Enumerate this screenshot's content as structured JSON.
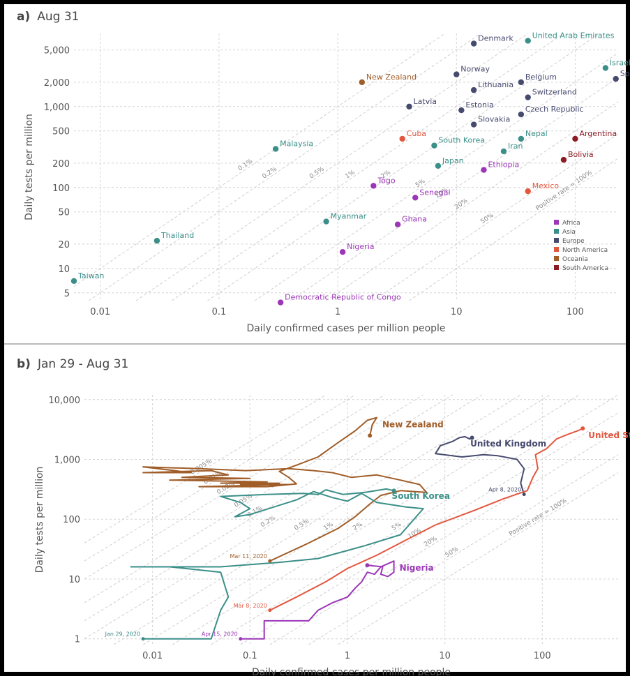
{
  "chart_data": [
    {
      "type": "scatter",
      "panel_letter": "a)",
      "title": "Aug 31",
      "xlabel": "Daily confirmed cases per million people",
      "ylabel": "Daily tests per million",
      "x_scale": "log",
      "y_scale": "log",
      "xlim": [
        0.006,
        230
      ],
      "ylim": [
        4,
        8000
      ],
      "x_ticks": [
        {
          "v": 0.01,
          "label": "0.01"
        },
        {
          "v": 0.1,
          "label": "0.1"
        },
        {
          "v": 1,
          "label": "1"
        },
        {
          "v": 10,
          "label": "10"
        },
        {
          "v": 100,
          "label": "100"
        }
      ],
      "y_ticks": [
        {
          "v": 5,
          "label": "5"
        },
        {
          "v": 10,
          "label": "10"
        },
        {
          "v": 20,
          "label": "20"
        },
        {
          "v": 50,
          "label": "50"
        },
        {
          "v": 100,
          "label": "100"
        },
        {
          "v": 200,
          "label": "200"
        },
        {
          "v": 500,
          "label": "500"
        },
        {
          "v": 1000,
          "label": "1,000"
        },
        {
          "v": 2000,
          "label": "2,000"
        },
        {
          "v": 5000,
          "label": "5,000"
        }
      ],
      "positive_rate_lines": [
        {
          "rate": 0.001,
          "label": "0.1%"
        },
        {
          "rate": 0.002,
          "label": "0.2%"
        },
        {
          "rate": 0.005,
          "label": "0.5%"
        },
        {
          "rate": 0.01,
          "label": "1%"
        },
        {
          "rate": 0.02,
          "label": "2%"
        },
        {
          "rate": 0.05,
          "label": "5%"
        },
        {
          "rate": 0.1,
          "label": "10%"
        },
        {
          "rate": 0.2,
          "label": "20%"
        },
        {
          "rate": 0.5,
          "label": "50%"
        },
        {
          "rate": 1,
          "label": "Positive rate = 100%"
        }
      ],
      "legend_position": "bottom-right",
      "legend": [
        {
          "region": "Africa",
          "color": "#9b36b7"
        },
        {
          "region": "Asia",
          "color": "#3a8f88"
        },
        {
          "region": "Europe",
          "color": "#464a6e"
        },
        {
          "region": "North America",
          "color": "#e3573f"
        },
        {
          "region": "Oceania",
          "color": "#a05d28"
        },
        {
          "region": "South America",
          "color": "#8c1c24"
        }
      ],
      "labeled_points": [
        {
          "country": "Taiwan",
          "region": "Asia",
          "x": 0.006,
          "y": 7
        },
        {
          "country": "Thailand",
          "region": "Asia",
          "x": 0.03,
          "y": 22
        },
        {
          "country": "Malaysia",
          "region": "Asia",
          "x": 0.3,
          "y": 300
        },
        {
          "country": "Democratic Republic of Congo",
          "region": "Africa",
          "x": 0.33,
          "y": 3.8
        },
        {
          "country": "Myanmar",
          "region": "Asia",
          "x": 0.8,
          "y": 38
        },
        {
          "country": "Nigeria",
          "region": "Africa",
          "x": 1.1,
          "y": 16
        },
        {
          "country": "New Zealand",
          "region": "Oceania",
          "x": 1.6,
          "y": 2000
        },
        {
          "country": "Togo",
          "region": "Africa",
          "x": 2.0,
          "y": 105
        },
        {
          "country": "Ghana",
          "region": "Africa",
          "x": 3.2,
          "y": 35
        },
        {
          "country": "Cuba",
          "region": "North America",
          "x": 3.5,
          "y": 400
        },
        {
          "country": "Latvia",
          "region": "Europe",
          "x": 4.0,
          "y": 1000
        },
        {
          "country": "Senegal",
          "region": "Africa",
          "x": 4.5,
          "y": 75
        },
        {
          "country": "South Korea",
          "region": "Asia",
          "x": 6.5,
          "y": 330
        },
        {
          "country": "Japan",
          "region": "Asia",
          "x": 7.0,
          "y": 185
        },
        {
          "country": "Norway",
          "region": "Europe",
          "x": 10.0,
          "y": 2500
        },
        {
          "country": "Estonia",
          "region": "Europe",
          "x": 11.0,
          "y": 900
        },
        {
          "country": "Lithuania",
          "region": "Europe",
          "x": 14.0,
          "y": 1600
        },
        {
          "country": "Slovakia",
          "region": "Europe",
          "x": 14.0,
          "y": 600
        },
        {
          "country": "Denmark",
          "region": "Europe",
          "x": 14.0,
          "y": 6000
        },
        {
          "country": "Ethiopia",
          "region": "Africa",
          "x": 17.0,
          "y": 165
        },
        {
          "country": "Iran",
          "region": "Asia",
          "x": 25.0,
          "y": 280
        },
        {
          "country": "Nepal",
          "region": "Asia",
          "x": 35.0,
          "y": 400
        },
        {
          "country": "Mexico",
          "region": "North America",
          "x": 40.0,
          "y": 90
        },
        {
          "country": "Belgium",
          "region": "Europe",
          "x": 35.0,
          "y": 2000
        },
        {
          "country": "Switzerland",
          "region": "Europe",
          "x": 40.0,
          "y": 1300
        },
        {
          "country": "Czech Republic",
          "region": "Europe",
          "x": 35.0,
          "y": 800
        },
        {
          "country": "United Arab Emirates",
          "region": "Asia",
          "x": 40.0,
          "y": 6500
        },
        {
          "country": "Argentina",
          "region": "South America",
          "x": 100.0,
          "y": 400
        },
        {
          "country": "Bolivia",
          "region": "South America",
          "x": 80.0,
          "y": 220
        },
        {
          "country": "Spain",
          "region": "Europe",
          "x": 220.0,
          "y": 2200
        },
        {
          "country": "Israel",
          "region": "Asia",
          "x": 180.0,
          "y": 3000
        }
      ]
    },
    {
      "type": "line",
      "panel_letter": "b)",
      "title": "Jan 29 - Aug 31",
      "xlabel": "Daily confirmed cases per million people",
      "ylabel": "Daily tests per million",
      "x_scale": "log",
      "y_scale": "log",
      "xlim": [
        0.002,
        600
      ],
      "ylim": [
        0.8,
        12000
      ],
      "x_ticks": [
        {
          "v": 0.01,
          "label": "0.01"
        },
        {
          "v": 0.1,
          "label": "0.1"
        },
        {
          "v": 1,
          "label": "1"
        },
        {
          "v": 10,
          "label": "10"
        },
        {
          "v": 100,
          "label": "100"
        }
      ],
      "y_ticks": [
        {
          "v": 1,
          "label": "1"
        },
        {
          "v": 10,
          "label": "10"
        },
        {
          "v": 100,
          "label": "100"
        },
        {
          "v": 1000,
          "label": "1,000"
        },
        {
          "v": 10000,
          "label": "10,000"
        }
      ],
      "positive_rate_lines": [
        {
          "rate": 5e-05,
          "label": "0.005%"
        },
        {
          "rate": 0.0001,
          "label": "0.01%"
        },
        {
          "rate": 0.0002,
          "label": "0.02%"
        },
        {
          "rate": 0.0005,
          "label": "0.05%"
        },
        {
          "rate": 0.001,
          "label": "0.1%"
        },
        {
          "rate": 0.002,
          "label": "0.2%"
        },
        {
          "rate": 0.005,
          "label": "0.5%"
        },
        {
          "rate": 0.01,
          "label": "1%"
        },
        {
          "rate": 0.02,
          "label": "2%"
        },
        {
          "rate": 0.05,
          "label": "5%"
        },
        {
          "rate": 0.1,
          "label": "10%"
        },
        {
          "rate": 0.2,
          "label": "20%"
        },
        {
          "rate": 0.5,
          "label": "50%"
        },
        {
          "rate": 1,
          "label": "Positive rate = 100%"
        }
      ],
      "series": [
        {
          "name": "New Zealand",
          "color": "#a05d28",
          "points": [
            [
              0.16,
              20
            ],
            [
              0.4,
              40
            ],
            [
              0.8,
              70
            ],
            [
              1.2,
              110
            ],
            [
              1.7,
              180
            ],
            [
              2.2,
              250
            ],
            [
              3.5,
              300
            ],
            [
              6.5,
              280
            ],
            [
              5.5,
              380
            ],
            [
              3.5,
              450
            ],
            [
              2.0,
              550
            ],
            [
              1.1,
              500
            ],
            [
              0.7,
              600
            ],
            [
              0.45,
              650
            ],
            [
              0.25,
              700
            ],
            [
              0.09,
              650
            ],
            [
              0.03,
              700
            ],
            [
              0.008,
              750
            ],
            [
              0.025,
              600
            ],
            [
              0.008,
              600
            ],
            [
              0.04,
              650
            ],
            [
              0.06,
              550
            ],
            [
              0.02,
              500
            ],
            [
              0.1,
              480
            ],
            [
              0.015,
              450
            ],
            [
              0.15,
              420
            ],
            [
              0.05,
              400
            ],
            [
              0.2,
              400
            ],
            [
              0.08,
              380
            ],
            [
              0.25,
              380
            ],
            [
              0.03,
              350
            ],
            [
              0.15,
              350
            ],
            [
              0.3,
              390
            ],
            [
              0.25,
              500
            ],
            [
              0.2,
              630
            ],
            [
              0.3,
              800
            ],
            [
              0.5,
              1100
            ],
            [
              0.8,
              1900
            ],
            [
              1.2,
              3000
            ],
            [
              1.6,
              4500
            ],
            [
              2.0,
              5000
            ],
            [
              1.8,
              3800
            ],
            [
              1.7,
              2500
            ]
          ]
        },
        {
          "name": "United Kingdom",
          "color": "#464a6e",
          "points": [
            [
              65,
              260
            ],
            [
              60,
              400
            ],
            [
              65,
              700
            ],
            [
              55,
              1000
            ],
            [
              35,
              1150
            ],
            [
              25,
              1200
            ],
            [
              15,
              1100
            ],
            [
              8,
              1250
            ],
            [
              9,
              1700
            ],
            [
              12,
              2000
            ],
            [
              14,
              2300
            ],
            [
              16,
              2400
            ],
            [
              18,
              2200
            ],
            [
              19,
              2300
            ]
          ]
        },
        {
          "name": "United States",
          "color": "#e3573f",
          "points": [
            [
              0.16,
              3
            ],
            [
              0.3,
              5
            ],
            [
              0.6,
              9
            ],
            [
              1,
              15
            ],
            [
              2,
              25
            ],
            [
              4,
              45
            ],
            [
              8,
              80
            ],
            [
              20,
              140
            ],
            [
              40,
              220
            ],
            [
              70,
              300
            ],
            [
              80,
              500
            ],
            [
              90,
              700
            ],
            [
              85,
              1200
            ],
            [
              110,
              1500
            ],
            [
              140,
              2200
            ],
            [
              180,
              2600
            ],
            [
              230,
              3000
            ],
            [
              260,
              3300
            ]
          ]
        },
        {
          "name": "South Korea",
          "color": "#3a8f88",
          "points": [
            [
              0.008,
              1
            ],
            [
              0.04,
              1
            ],
            [
              0.05,
              3
            ],
            [
              0.06,
              5
            ],
            [
              0.05,
              13
            ],
            [
              0.015,
              16
            ],
            [
              0.006,
              16
            ],
            [
              0.05,
              16
            ],
            [
              0.2,
              19
            ],
            [
              0.5,
              22
            ],
            [
              1.5,
              36
            ],
            [
              3.5,
              55
            ],
            [
              6,
              150
            ],
            [
              4,
              160
            ],
            [
              2,
              190
            ],
            [
              1.4,
              270
            ],
            [
              1.0,
              200
            ],
            [
              0.7,
              230
            ],
            [
              0.45,
              290
            ],
            [
              0.3,
              210
            ],
            [
              0.1,
              120
            ],
            [
              0.07,
              110
            ],
            [
              0.1,
              150
            ],
            [
              0.08,
              190
            ],
            [
              0.05,
              240
            ],
            [
              0.15,
              260
            ],
            [
              0.35,
              270
            ],
            [
              0.5,
              260
            ],
            [
              0.6,
              310
            ],
            [
              0.9,
              260
            ],
            [
              1.5,
              280
            ],
            [
              2.5,
              320
            ],
            [
              3,
              300
            ]
          ]
        },
        {
          "name": "Nigeria",
          "color": "#9b36b7",
          "points": [
            [
              0.08,
              1
            ],
            [
              0.14,
              1
            ],
            [
              0.14,
              2
            ],
            [
              0.4,
              2
            ],
            [
              0.5,
              3
            ],
            [
              0.7,
              4
            ],
            [
              1.0,
              5
            ],
            [
              1.2,
              7
            ],
            [
              1.4,
              9
            ],
            [
              1.6,
              13
            ],
            [
              1.9,
              12
            ],
            [
              2.2,
              16
            ],
            [
              2.6,
              18
            ],
            [
              3.0,
              20
            ],
            [
              3.0,
              13
            ],
            [
              2.6,
              11
            ],
            [
              2.2,
              12
            ],
            [
              2.3,
              16
            ],
            [
              1.6,
              17
            ]
          ]
        }
      ],
      "annotations": [
        {
          "label": "Jan 29, 2020",
          "series": "South Korea",
          "x": 0.008,
          "y": 1
        },
        {
          "label": "Apr 15, 2020",
          "series": "Nigeria",
          "x": 0.08,
          "y": 1
        },
        {
          "label": "Mar 8, 2020",
          "series": "United States",
          "x": 0.16,
          "y": 3
        },
        {
          "label": "Mar 11, 2020",
          "series": "New Zealand",
          "x": 0.16,
          "y": 20
        },
        {
          "label": "Apr 8, 2020",
          "series": "United Kingdom",
          "x": 65,
          "y": 260
        }
      ]
    }
  ]
}
